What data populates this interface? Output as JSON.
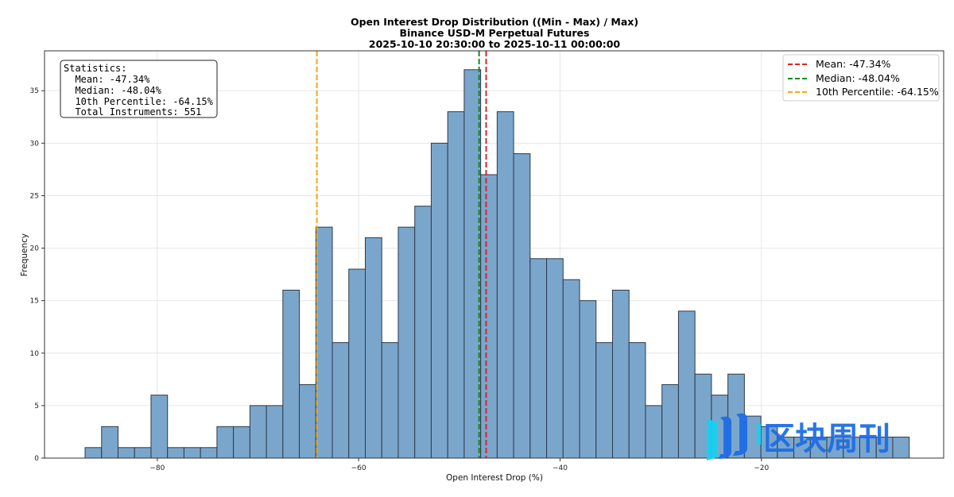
{
  "chart_data": {
    "type": "bar",
    "title": "Open Interest Drop Distribution ((Min - Max) / Max)",
    "subtitle": "Binance USD-M Perpetual Futures",
    "subtitle2": "2025-10-10 20:30:00 to 2025-10-11 00:00:00",
    "xlabel": "Open Interest Drop (%)",
    "ylabel": "Frequency",
    "xlim": [
      -91.2,
      -1.9
    ],
    "ylim": [
      0,
      38.8
    ],
    "grid": true,
    "bin_start": -87.17,
    "bin_width": 1.637,
    "values": [
      1,
      3,
      1,
      1,
      6,
      1,
      1,
      1,
      3,
      3,
      5,
      5,
      16,
      7,
      22,
      11,
      18,
      21,
      11,
      22,
      24,
      30,
      33,
      37,
      27,
      33,
      29,
      19,
      19,
      17,
      15,
      11,
      16,
      11,
      5,
      7,
      14,
      8,
      6,
      8,
      4,
      3,
      2,
      2,
      2,
      2,
      2,
      2,
      2,
      2
    ],
    "xticks": [
      -80,
      -60,
      -40,
      -20
    ],
    "xtick_labels": [
      "−80",
      "−60",
      "−40",
      "−20"
    ],
    "yticks": [
      0,
      5,
      10,
      15,
      20,
      25,
      30,
      35
    ],
    "ytick_labels": [
      "0",
      "5",
      "10",
      "15",
      "20",
      "25",
      "30",
      "35"
    ],
    "bar_color": "#7ba6cc",
    "bar_edge": "#2b3a4a",
    "vlines": [
      {
        "name": "mean",
        "value": -47.34,
        "color": "#d62728",
        "label": "Mean: -47.34%"
      },
      {
        "name": "median",
        "value": -48.04,
        "color": "#138a1c",
        "label": "Median: -48.04%"
      },
      {
        "name": "p10",
        "value": -64.15,
        "color": "#f0a818",
        "label": "10th Percentile: -64.15%"
      }
    ],
    "legend_placement": "top-right",
    "stats_box": {
      "placement": "top-left",
      "lines": [
        "Statistics:",
        "  Mean: -47.34%",
        "  Median: -48.04%",
        "  10th Percentile: -64.15%",
        "  Total Instruments: 551"
      ]
    }
  },
  "watermark": {
    "text": "区块周刊",
    "color": "#1e6ee6",
    "accent": "#18d0f0"
  }
}
